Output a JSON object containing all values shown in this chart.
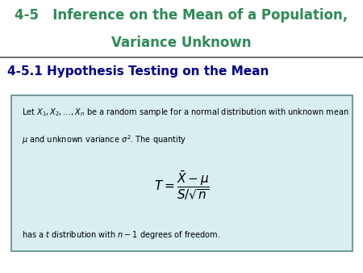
{
  "title_line1": "4-5   Inference on the Mean of a Population,",
  "title_line2": "Variance Unknown",
  "subtitle": "4-5.1 Hypothesis Testing on the Mean",
  "title_color": "#2E8B57",
  "subtitle_color": "#00008B",
  "box_text_line1": "Let $X_1, X_2, \\ldots, X_n$ be a random sample for a normal distribution with unknown mean",
  "box_text_line2": "$\\mu$ and unknown variance $\\sigma^2$. The quantity",
  "box_formula": "$T = \\dfrac{\\bar{X} - \\mu}{S/\\sqrt{n}}$",
  "box_text_line3": "has a $t$ distribution with $n - 1$ degrees of freedom.",
  "box_bg_color": "#d8eef0",
  "box_border_color": "#5a8a8a",
  "background_color": "#ffffff",
  "text_color": "#000000",
  "line_color": "#555555"
}
